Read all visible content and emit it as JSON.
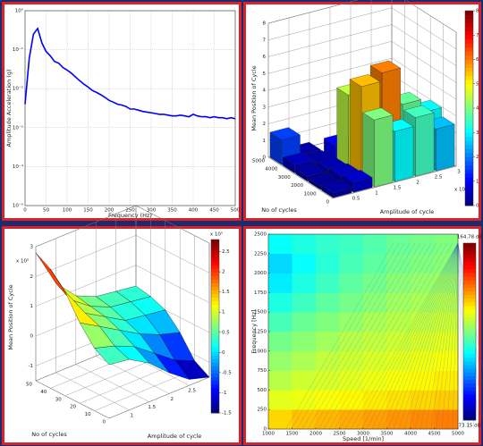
{
  "chart_data": [
    {
      "type": "line",
      "xlabel": "Frequency (Hz)",
      "ylabel": "Amplitude Acceleration (g)",
      "x": [
        0,
        10,
        20,
        30,
        40,
        50,
        60,
        70,
        80,
        90,
        100,
        110,
        120,
        130,
        140,
        150,
        160,
        170,
        180,
        190,
        200,
        210,
        220,
        230,
        240,
        250,
        260,
        270,
        280,
        290,
        300,
        310,
        320,
        330,
        340,
        350,
        360,
        370,
        380,
        390,
        400,
        410,
        420,
        430,
        440,
        450,
        460,
        470,
        480,
        490,
        500
      ],
      "series": [
        {
          "color": "#0000ff",
          "values": [
            0.004,
            0.06,
            0.25,
            0.35,
            0.15,
            0.09,
            0.07,
            0.05,
            0.045,
            0.035,
            0.03,
            0.025,
            0.02,
            0.016,
            0.013,
            0.011,
            0.009,
            0.008,
            0.007,
            0.006,
            0.005,
            0.0045,
            0.004,
            0.0038,
            0.0035,
            0.003,
            0.003,
            0.0028,
            0.0026,
            0.0025,
            0.0024,
            0.0023,
            0.0022,
            0.0022,
            0.0021,
            0.002,
            0.002,
            0.0021,
            0.002,
            0.0019,
            0.0022,
            0.002,
            0.0019,
            0.0019,
            0.0018,
            0.0019,
            0.0018,
            0.0018,
            0.0017,
            0.0018,
            0.0017
          ]
        }
      ],
      "xlim": [
        0,
        500
      ],
      "xticks": [
        0,
        50,
        100,
        150,
        200,
        250,
        300,
        350,
        400,
        450,
        500
      ],
      "ylim": [
        1e-05,
        1
      ],
      "log_y": true,
      "grid": true,
      "yticks": [
        {
          "value": 1e-05,
          "label": "10⁻⁵"
        },
        {
          "value": 0.0001,
          "label": "10⁻⁴"
        },
        {
          "value": 0.001,
          "label": "10⁻³"
        },
        {
          "value": 0.01,
          "label": "10⁻²"
        },
        {
          "value": 0.1,
          "label": "10⁻¹"
        },
        {
          "value": 1,
          "label": "10⁰"
        }
      ]
    },
    {
      "type": "bar3d",
      "xlabel": "Amplitude of cycle",
      "ylabel": "No of cycles",
      "zlabel": "Mean Position of Cycle",
      "x_exponent": "x 10",
      "x": [
        0.25,
        0.75,
        1.25,
        1.75,
        2.25,
        2.75
      ],
      "y": [
        500,
        1500,
        2500,
        3500,
        4500
      ],
      "values": [
        [
          0.3,
          0.6,
          4.0,
          3.0,
          3.5,
          2.5
        ],
        [
          0.2,
          0.5,
          5.5,
          6.0,
          3.8,
          3.0
        ],
        [
          0.3,
          0.4,
          4.5,
          3.0,
          2.5,
          2.0
        ],
        [
          0.5,
          0.3,
          1.0,
          0.5,
          0.4,
          0.3
        ],
        [
          1.5,
          0.3,
          null,
          null,
          null,
          null
        ]
      ],
      "xlim": [
        0,
        3
      ],
      "xticks": [
        0.5,
        1,
        1.5,
        2,
        2.5,
        3
      ],
      "ylim": [
        0,
        5000
      ],
      "yticks": [
        0,
        1000,
        2000,
        3000,
        4000,
        5000
      ],
      "zlim": [
        0,
        8
      ],
      "zticks": [
        0,
        1,
        2,
        3,
        4,
        5,
        6,
        7,
        8
      ]
    },
    {
      "type": "surface",
      "xlabel": "Amplitude of cycle",
      "ylabel": "No of cycles",
      "zlabel": "Mean Position of Cycle",
      "z_exponent": "x 10⁵",
      "c_exponent": "x 10⁵",
      "x": [
        0.5,
        1,
        1.5,
        2,
        2.5,
        3
      ],
      "y": [
        0,
        10,
        20,
        30,
        40,
        50
      ],
      "values": [
        [
          0.3,
          0.2,
          -0.2,
          -0.8,
          -1.3,
          -1.5
        ],
        [
          0.6,
          0.4,
          0.1,
          -0.4,
          -0.9,
          -1.2
        ],
        [
          1.2,
          0.8,
          0.4,
          0,
          -0.3,
          -0.5
        ],
        [
          2.0,
          1.0,
          0.6,
          0.2,
          0.1,
          0
        ],
        [
          2.5,
          1.2,
          0.7,
          0.4,
          0.3,
          0.2
        ],
        [
          2.8,
          1.5,
          0.8,
          0.5,
          0.4,
          0.3
        ]
      ],
      "xlim": [
        0.5,
        3
      ],
      "xticks": [
        1,
        1.5,
        2,
        2.5,
        3
      ],
      "ylim": [
        0,
        50
      ],
      "yticks": [
        0,
        10,
        20,
        30,
        40,
        50
      ],
      "zlim": [
        -1.5,
        3
      ],
      "zticks": [
        -1,
        0,
        1,
        2,
        3
      ],
      "clim": [
        -1.5,
        2.8
      ],
      "cticks": [
        -1.5,
        -1,
        -0.5,
        0,
        0.5,
        1,
        1.5,
        2,
        2.5
      ]
    },
    {
      "type": "heatmap",
      "xlabel": "Speed [1/min]",
      "ylabel": "Frequency [Hz]",
      "x": [
        1250,
        1750,
        2250,
        2750,
        3250,
        3750,
        4250,
        4750
      ],
      "y": [
        125,
        375,
        625,
        875,
        1125,
        1375,
        1625,
        1875,
        2125,
        2375
      ],
      "values": [
        [
          134,
          136,
          137,
          138,
          139,
          140,
          141,
          142
        ],
        [
          128,
          129,
          130,
          131,
          132,
          133,
          134,
          135
        ],
        [
          124,
          126,
          127,
          128,
          129,
          130,
          131,
          132
        ],
        [
          121,
          123,
          125,
          126,
          127,
          128,
          129,
          130
        ],
        [
          118,
          120,
          122,
          124,
          125,
          126,
          127,
          128
        ],
        [
          114,
          117,
          119,
          121,
          123,
          124,
          125,
          126
        ],
        [
          110,
          113,
          116,
          118,
          120,
          122,
          123,
          124
        ],
        [
          106,
          110,
          113,
          116,
          118,
          120,
          121,
          122
        ],
        [
          104,
          108,
          111,
          114,
          116,
          118,
          119,
          120
        ],
        [
          108,
          110,
          112,
          113,
          115,
          117,
          118,
          119
        ]
      ],
      "xlim": [
        1000,
        5000
      ],
      "xticks": [
        1000,
        1500,
        2000,
        2500,
        3000,
        3500,
        4000,
        4500,
        5000
      ],
      "ylim": [
        0,
        2500
      ],
      "yticks": [
        0,
        250,
        500,
        750,
        1000,
        1250,
        1500,
        1750,
        2000,
        2250,
        2500
      ],
      "clim": [
        {
          "value": 73.15,
          "label": "73.15 dB"
        },
        {
          "value": 164.78,
          "label": "164.78 dB"
        }
      ]
    }
  ]
}
